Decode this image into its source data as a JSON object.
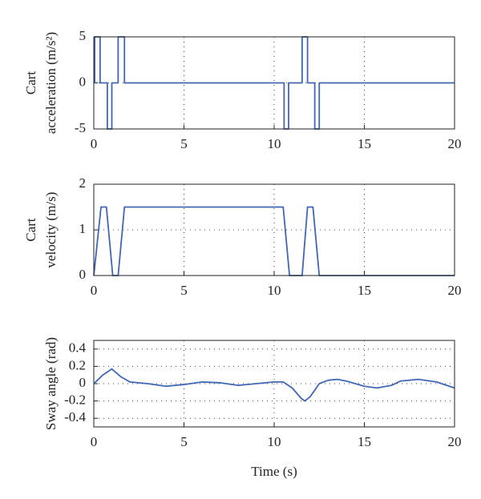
{
  "chart_data": [
    {
      "type": "line",
      "ylabel": [
        "Cart",
        "acceleration (m/s²)"
      ],
      "x": [
        0,
        0.05,
        0.05,
        0.35,
        0.35,
        0.75,
        0.75,
        1.0,
        1.0,
        1.35,
        1.35,
        1.7,
        1.7,
        10.55,
        10.55,
        10.8,
        10.8,
        11.55,
        11.55,
        11.85,
        11.85,
        12.25,
        12.25,
        12.5,
        12.5,
        20
      ],
      "y": [
        0,
        0,
        5,
        5,
        0,
        0,
        -5,
        -5,
        0,
        0,
        5,
        5,
        0,
        0,
        -5,
        -5,
        0,
        0,
        5,
        5,
        0,
        0,
        -5,
        -5,
        0,
        0
      ],
      "color": "#4266b3",
      "xlim": [
        0,
        20
      ],
      "xticks": [
        0,
        5,
        10,
        15,
        20
      ],
      "ylim": [
        -5,
        5
      ],
      "yticks": [
        -5,
        0,
        5
      ],
      "grid": true
    },
    {
      "type": "line",
      "ylabel": [
        "Cart",
        "velocity (m/s)"
      ],
      "x": [
        0,
        0.4,
        0.7,
        1.05,
        1.35,
        1.7,
        10.5,
        10.85,
        11.55,
        11.85,
        12.15,
        12.5,
        20
      ],
      "y": [
        0,
        1.5,
        1.5,
        0,
        0,
        1.5,
        1.5,
        0,
        0,
        1.5,
        1.5,
        0,
        0
      ],
      "color": "#4266b3",
      "xlim": [
        0,
        20
      ],
      "xticks": [
        0,
        5,
        10,
        15,
        20
      ],
      "ylim": [
        0,
        2
      ],
      "yticks": [
        0,
        1,
        2
      ],
      "grid": true
    },
    {
      "type": "line",
      "ylabel": [
        "Sway angle (rad)"
      ],
      "xlabel": "Time (s)",
      "x": [
        0,
        0.5,
        1,
        1.5,
        2,
        3,
        4,
        5,
        6,
        7,
        8,
        9,
        10,
        10.5,
        11,
        11.5,
        11.7,
        12,
        12.5,
        13,
        13.5,
        14,
        15,
        15.7,
        16.5,
        17,
        18,
        19,
        20
      ],
      "y": [
        0,
        0.1,
        0.17,
        0.08,
        0.02,
        0.0,
        -0.03,
        -0.01,
        0.02,
        0.01,
        -0.02,
        0,
        0.02,
        0.02,
        -0.05,
        -0.17,
        -0.2,
        -0.15,
        0.0,
        0.04,
        0.05,
        0.03,
        -0.03,
        -0.05,
        -0.02,
        0.03,
        0.05,
        0.02,
        -0.05
      ],
      "color": "#4266b3",
      "xlim": [
        0,
        20
      ],
      "xticks": [
        0,
        5,
        10,
        15,
        20
      ],
      "ylim": [
        -0.5,
        0.5
      ],
      "yticks": [
        -0.4,
        -0.2,
        0,
        0.2,
        0.4
      ],
      "grid": true
    }
  ]
}
